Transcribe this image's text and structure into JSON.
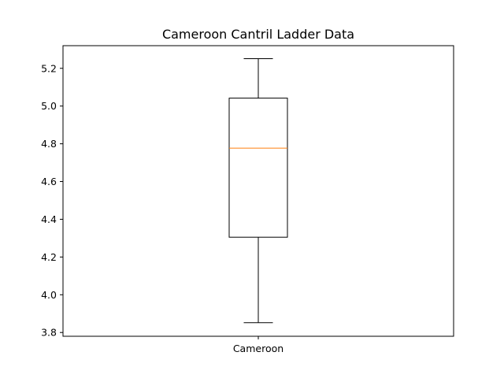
{
  "chart_data": {
    "type": "box",
    "title": "Cameroon Cantril Ladder Data",
    "xlabel": "",
    "ylabel": "",
    "categories": [
      "Cameroon"
    ],
    "ylim": [
      3.78,
      5.32
    ],
    "yticks": [
      3.8,
      4.0,
      4.2,
      4.4,
      4.6,
      4.8,
      5.0,
      5.2
    ],
    "ytick_labels": [
      "3.8",
      "4.0",
      "4.2",
      "4.4",
      "4.6",
      "4.8",
      "5.0",
      "5.2"
    ],
    "boxes": [
      {
        "category": "Cameroon",
        "whisker_low": 3.852,
        "q1": 4.305,
        "median": 4.777,
        "q3": 5.042,
        "whisker_high": 5.251
      }
    ],
    "grid": false,
    "colors": {
      "box": "#000000",
      "median": "#ff7f0e",
      "axes": "#000000"
    }
  }
}
